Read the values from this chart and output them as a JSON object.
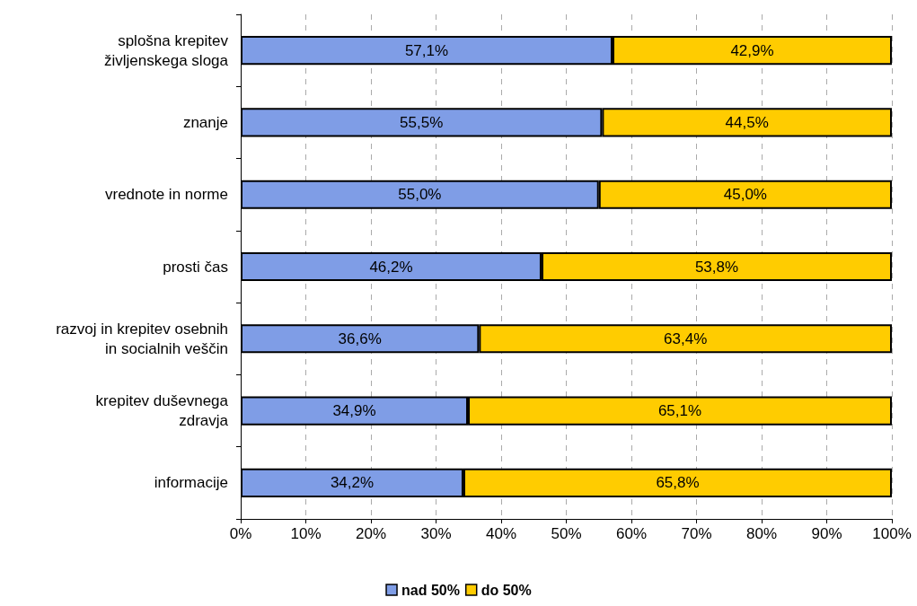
{
  "chart_data": {
    "type": "bar",
    "orientation": "horizontal",
    "stacked": true,
    "categories": [
      "splošna krepitev\nživljenskega sloga",
      "znanje",
      "vrednote in norme",
      "prosti čas",
      "razvoj in krepitev osebnih\nin socialnih veščin",
      "krepitev duševnega\nzdravja",
      "informacije"
    ],
    "series": [
      {
        "name": "nad 50%",
        "color": "#7f9de6",
        "values": [
          57.1,
          55.5,
          55.0,
          46.2,
          36.6,
          34.9,
          34.2
        ],
        "value_labels": [
          "57,1%",
          "55,5%",
          "55,0%",
          "46,2%",
          "36,6%",
          "34,9%",
          "34,2%"
        ]
      },
      {
        "name": "do 50%",
        "color": "#ffcc00",
        "values": [
          42.9,
          44.5,
          45.0,
          53.8,
          63.4,
          65.1,
          65.8
        ],
        "value_labels": [
          "42,9%",
          "44,5%",
          "45,0%",
          "53,8%",
          "63,4%",
          "65,1%",
          "65,8%"
        ]
      }
    ],
    "xlim": [
      0,
      100
    ],
    "xticks": [
      {
        "value": 0,
        "label": "0%"
      },
      {
        "value": 10,
        "label": "10%"
      },
      {
        "value": 20,
        "label": "20%"
      },
      {
        "value": 30,
        "label": "30%"
      },
      {
        "value": 40,
        "label": "40%"
      },
      {
        "value": 50,
        "label": "50%"
      },
      {
        "value": 60,
        "label": "60%"
      },
      {
        "value": 70,
        "label": "70%"
      },
      {
        "value": 80,
        "label": "80%"
      },
      {
        "value": 90,
        "label": "90%"
      },
      {
        "value": 100,
        "label": "100%"
      }
    ],
    "grid": "x",
    "legend": "bottom"
  }
}
